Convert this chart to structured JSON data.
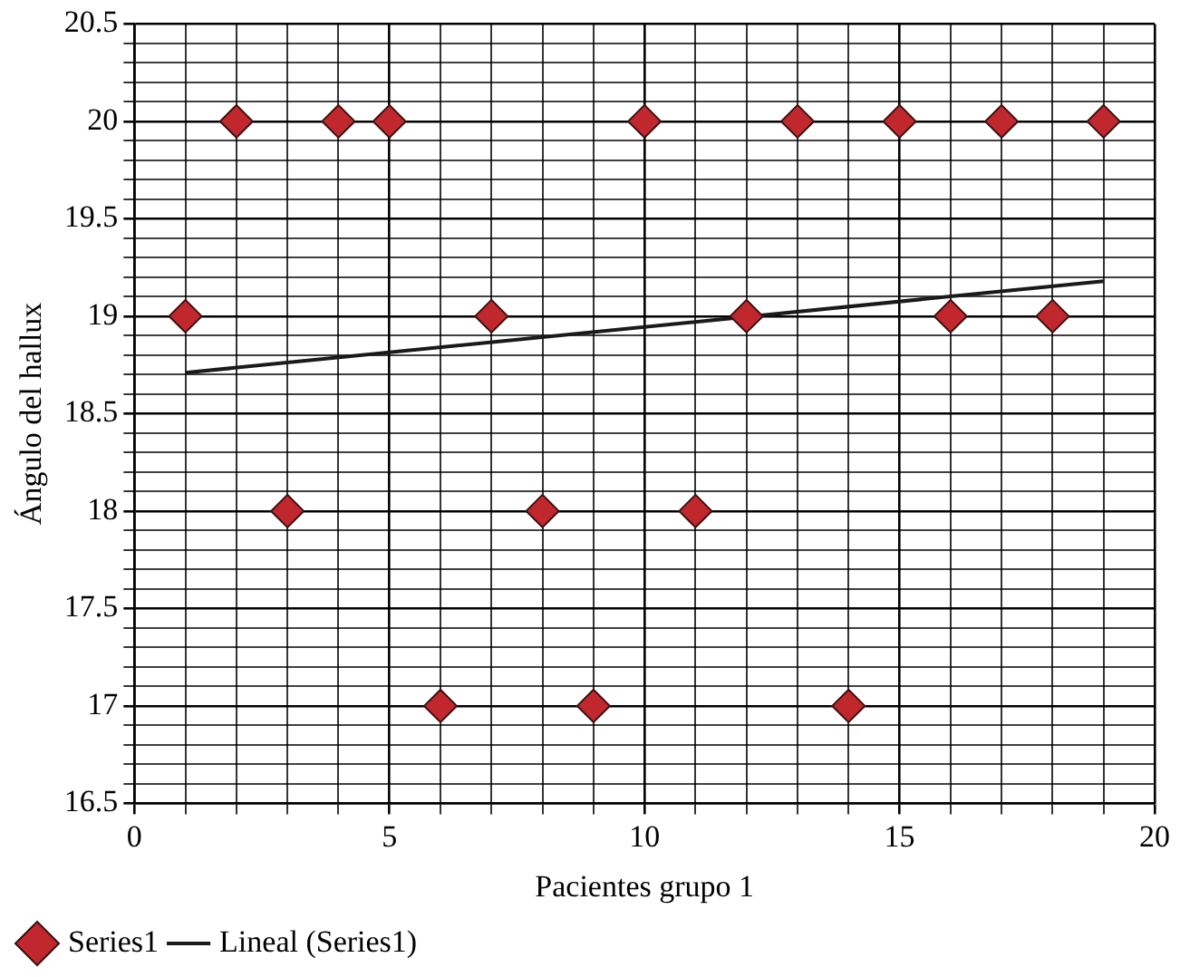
{
  "chart_data": {
    "type": "scatter",
    "xlabel": "Pacientes grupo 1",
    "ylabel": "Ángulo del hallux",
    "x": [
      1,
      2,
      3,
      4,
      5,
      6,
      7,
      8,
      9,
      10,
      11,
      12,
      13,
      14,
      15,
      16,
      17,
      18,
      19
    ],
    "series": [
      {
        "name": "Series1",
        "color": "#c0282d",
        "marker": "diamond",
        "values": [
          19,
          20,
          18,
          20,
          20,
          17,
          19,
          18,
          17,
          20,
          18,
          19,
          20,
          17,
          20,
          19,
          20,
          19,
          20
        ]
      },
      {
        "name": "Lineal (Series1)",
        "type": "line",
        "color": "#1a1a1a",
        "marker": "none",
        "line_style": "solid",
        "x": [
          1,
          19
        ],
        "values": [
          18.71,
          19.18
        ]
      }
    ],
    "xlim": [
      0,
      20
    ],
    "xticks": [
      0,
      {
        "value": 1,
        "label": null
      },
      {
        "value": 2,
        "label": null
      },
      {
        "value": 3,
        "label": null
      },
      {
        "value": 4,
        "label": null
      },
      5,
      {
        "value": 6,
        "label": null
      },
      {
        "value": 7,
        "label": null
      },
      {
        "value": 8,
        "label": null
      },
      {
        "value": 9,
        "label": null
      },
      10,
      {
        "value": 11,
        "label": null
      },
      {
        "value": 12,
        "label": null
      },
      {
        "value": 13,
        "label": null
      },
      {
        "value": 14,
        "label": null
      },
      15,
      {
        "value": 16,
        "label": null
      },
      {
        "value": 17,
        "label": null
      },
      {
        "value": 18,
        "label": null
      },
      {
        "value": 19,
        "label": null
      },
      20
    ],
    "ylim": [
      16.5,
      20.5
    ],
    "yticks": [
      16.5,
      {
        "value": 16.6,
        "label": null
      },
      {
        "value": 16.7,
        "label": null
      },
      {
        "value": 16.8,
        "label": null
      },
      {
        "value": 16.9,
        "label": null
      },
      17,
      {
        "value": 17.1,
        "label": null
      },
      {
        "value": 17.2,
        "label": null
      },
      {
        "value": 17.3,
        "label": null
      },
      {
        "value": 17.4,
        "label": null
      },
      17.5,
      {
        "value": 17.6,
        "label": null
      },
      {
        "value": 17.7,
        "label": null
      },
      {
        "value": 17.8,
        "label": null
      },
      {
        "value": 17.9,
        "label": null
      },
      18,
      {
        "value": 18.1,
        "label": null
      },
      {
        "value": 18.2,
        "label": null
      },
      {
        "value": 18.3,
        "label": null
      },
      {
        "value": 18.4,
        "label": null
      },
      18.5,
      {
        "value": 18.6,
        "label": null
      },
      {
        "value": 18.7,
        "label": null
      },
      {
        "value": 18.8,
        "label": null
      },
      {
        "value": 18.9,
        "label": null
      },
      19,
      {
        "value": 19.1,
        "label": null
      },
      {
        "value": 19.2,
        "label": null
      },
      {
        "value": 19.3,
        "label": null
      },
      {
        "value": 19.4,
        "label": null
      },
      19.5,
      {
        "value": 19.6,
        "label": null
      },
      {
        "value": 19.7,
        "label": null
      },
      {
        "value": 19.8,
        "label": null
      },
      {
        "value": 19.9,
        "label": null
      },
      20,
      {
        "value": 20.1,
        "label": null
      },
      {
        "value": 20.2,
        "label": null
      },
      {
        "value": 20.3,
        "label": null
      },
      {
        "value": 20.4,
        "label": null
      },
      20.5
    ],
    "grid": true,
    "legend": "bottom left"
  }
}
